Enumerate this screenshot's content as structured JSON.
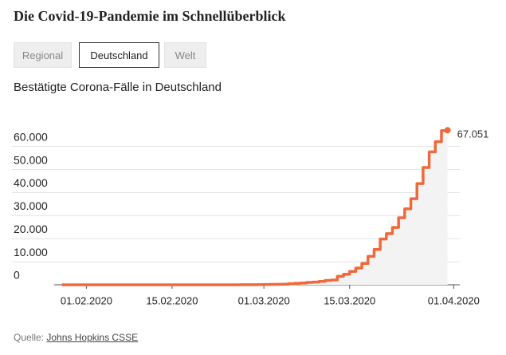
{
  "header": {
    "title": "Die Covid-19-Pandemie im Schnellüberblick"
  },
  "tabs": [
    {
      "label": "Regional"
    },
    {
      "label": "Deutschland"
    },
    {
      "label": "Welt"
    }
  ],
  "chart_data": {
    "type": "line",
    "title": "Bestätigte Corona-Fälle in Deutschland",
    "x": [
      "2020-01-28",
      "2020-01-31",
      "2020-02-01",
      "2020-02-03",
      "2020-02-04",
      "2020-02-07",
      "2020-02-09",
      "2020-02-11",
      "2020-02-25",
      "2020-02-26",
      "2020-02-27",
      "2020-02-28",
      "2020-02-29",
      "2020-03-01",
      "2020-03-02",
      "2020-03-03",
      "2020-03-04",
      "2020-03-05",
      "2020-03-06",
      "2020-03-07",
      "2020-03-08",
      "2020-03-09",
      "2020-03-10",
      "2020-03-11",
      "2020-03-12",
      "2020-03-13",
      "2020-03-14",
      "2020-03-15",
      "2020-03-16",
      "2020-03-17",
      "2020-03-18",
      "2020-03-19",
      "2020-03-20",
      "2020-03-21",
      "2020-03-22",
      "2020-03-23",
      "2020-03-24",
      "2020-03-25",
      "2020-03-26",
      "2020-03-27",
      "2020-03-28",
      "2020-03-29",
      "2020-03-30",
      "2020-03-31"
    ],
    "series": [
      {
        "name": "Bestätigte Fälle",
        "color": "#ee6a3c",
        "values": [
          4,
          5,
          8,
          10,
          12,
          13,
          14,
          16,
          17,
          27,
          46,
          48,
          79,
          130,
          159,
          196,
          262,
          482,
          670,
          799,
          1040,
          1176,
          1457,
          1908,
          2078,
          3675,
          4585,
          5795,
          7272,
          9257,
          12327,
          15320,
          19848,
          22213,
          24873,
          29056,
          32986,
          37323,
          43938,
          50871,
          57695,
          62095,
          66885,
          67051
        ],
        "value_labels": [
          null,
          null,
          null,
          null,
          null,
          null,
          null,
          null,
          null,
          null,
          null,
          null,
          null,
          null,
          null,
          null,
          null,
          null,
          null,
          null,
          null,
          null,
          null,
          null,
          null,
          null,
          null,
          null,
          null,
          null,
          null,
          null,
          null,
          null,
          null,
          null,
          null,
          null,
          null,
          null,
          null,
          null,
          null,
          "67.051"
        ]
      }
    ],
    "xlim": [
      "2020-01-27",
      "2020-04-02"
    ],
    "xticks": [
      {
        "value": "2020-02-01",
        "label": "01.02.2020"
      },
      {
        "value": "2020-02-15",
        "label": "15.02.2020"
      },
      {
        "value": "2020-03-01",
        "label": "01.03.2020"
      },
      {
        "value": "2020-03-15",
        "label": "15.03.2020"
      },
      {
        "value": "2020-04-01",
        "label": "01.04.2020"
      }
    ],
    "ylim": [
      0,
      72000
    ],
    "yticks": [
      0,
      {
        "value": 10000,
        "label": "10.000"
      },
      {
        "value": 20000,
        "label": "20.000"
      },
      {
        "value": 30000,
        "label": "30.000"
      },
      {
        "value": 40000,
        "label": "40.000"
      },
      {
        "value": 50000,
        "label": "50.000"
      },
      {
        "value": 60000,
        "label": "60.000"
      }
    ],
    "grid": true
  },
  "source": {
    "label": "Quelle:",
    "link": "Johns Hopkins CSSE"
  }
}
